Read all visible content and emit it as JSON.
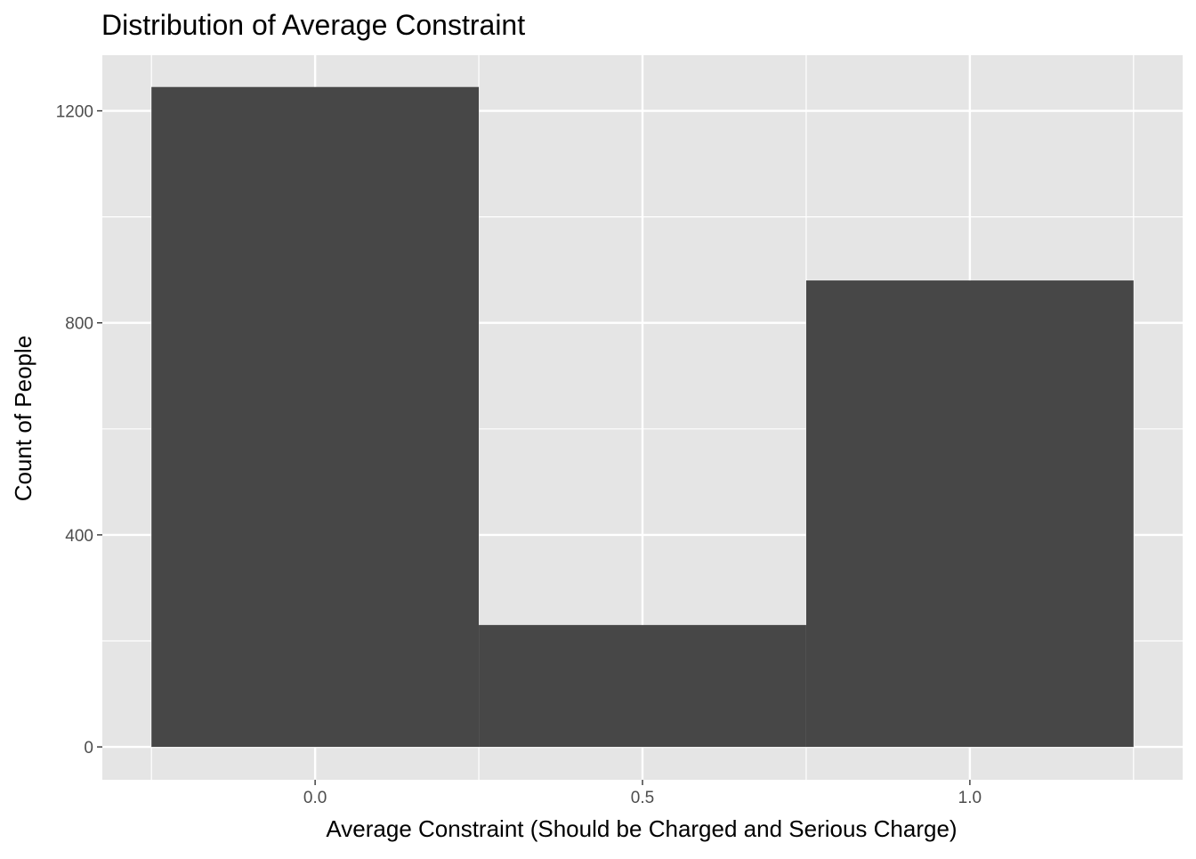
{
  "chart_data": {
    "type": "bar",
    "title": "Distribution of Average Constraint",
    "xlabel": "Average Constraint (Should be Charged and Serious Charge)",
    "ylabel": "Count of People",
    "bins": [
      {
        "x_start": -0.25,
        "x_end": 0.25,
        "count": 1245
      },
      {
        "x_start": 0.25,
        "x_end": 0.75,
        "count": 230
      },
      {
        "x_start": 0.75,
        "x_end": 1.25,
        "count": 880
      }
    ],
    "xlim": [
      -0.325,
      1.325
    ],
    "ylim": [
      -62,
      1305
    ],
    "x_ticks": [
      {
        "value": 0.0,
        "label": "0.0"
      },
      {
        "value": 0.5,
        "label": "0.5"
      },
      {
        "value": 1.0,
        "label": "1.0"
      }
    ],
    "y_ticks": [
      {
        "value": 0,
        "label": "0"
      },
      {
        "value": 400,
        "label": "400"
      },
      {
        "value": 800,
        "label": "800"
      },
      {
        "value": 1200,
        "label": "1200"
      }
    ],
    "x_minor_grid": [
      -0.25,
      0.25,
      0.75,
      1.25
    ],
    "y_minor_grid": [
      200,
      600,
      1000
    ],
    "grid": true,
    "legend": "none",
    "colors": {
      "panel_background": "#e5e5e5",
      "grid": "#ffffff",
      "bar_fill": "#474747",
      "tick_text": "#4d4d4d",
      "tick_mark": "#333333"
    }
  }
}
